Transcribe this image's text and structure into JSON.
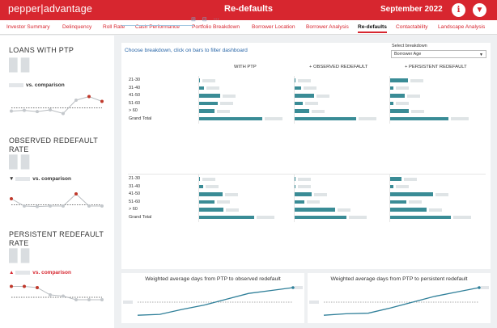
{
  "header": {
    "logo_left": "pepper",
    "logo_sep": "|",
    "logo_right": "advantage",
    "title": "Re-defaults",
    "period": "September 2022",
    "info_label": "i",
    "filter_label": "▼"
  },
  "nav": {
    "tabs": [
      {
        "label": "Investor Summary"
      },
      {
        "label": "Delinquency"
      },
      {
        "label": "Roll Rate"
      },
      {
        "label": "Cash Performance"
      },
      {
        "label": "Portfolio Breakdown"
      },
      {
        "label": "Borrower Location"
      },
      {
        "label": "Borrower Analysis"
      },
      {
        "label": "Re-defaults",
        "active": true
      },
      {
        "label": "Contactability"
      },
      {
        "label": "Landscape Analysis"
      }
    ]
  },
  "left_panel": {
    "loans_ptp": {
      "title": "LOANS WITH PTP",
      "vs_label": "vs. comparison"
    },
    "observed": {
      "title_1": "OBSERVED REDEFAULT",
      "title_2": "RATE",
      "vs_label": "vs. comparison",
      "vs_prefix": "▼"
    },
    "persistent": {
      "title_1": "PERSISTENT REDEFAULT",
      "title_2": "RATE",
      "vs_label": "vs. comparison",
      "vs_prefix": "▲"
    }
  },
  "main": {
    "instruction": "Choose breakdown, click on bars to filter dashboard",
    "select_label": "Select breakdown",
    "select_value": "Borrower Age",
    "columns": [
      "WITH PTP",
      "+ OBSERVED REDEFAULT",
      "+ PERSISTENT REDEFAULT"
    ],
    "rows": [
      "21-30",
      "31-40",
      "41-50",
      "51-60",
      "> 60",
      "Grand Total"
    ],
    "table1": {
      "with_ptp": [
        0.03,
        0.09,
        0.32,
        0.29,
        0.24,
        0.95
      ],
      "observed": [
        0.02,
        0.11,
        0.3,
        0.13,
        0.23,
        0.93
      ],
      "persistent": [
        0.28,
        0.06,
        0.23,
        0.06,
        0.29,
        0.88
      ]
    },
    "table2": {
      "with_ptp": [
        0.01,
        0.07,
        0.36,
        0.24,
        0.37,
        0.83
      ],
      "observed": [
        0.01,
        0.03,
        0.26,
        0.16,
        0.62,
        0.78
      ],
      "persistent": [
        0.18,
        0.06,
        0.65,
        0.25,
        0.55,
        0.92
      ]
    }
  },
  "bottom": {
    "observed_title": "Weighted average days from PTP to observed redefault",
    "persistent_title": "Weighted average days from PTP to persistent redefault"
  },
  "colors": {
    "brand_red": "#d7262f",
    "bar_teal": "#3a8c96",
    "link_blue": "#2a67a8"
  },
  "chart_data": [
    {
      "type": "line",
      "title": "LOANS WITH PTP",
      "series": [
        {
          "values": [
            0.35,
            0.38,
            0.33,
            0.4,
            0.25,
            0.8,
            0.95,
            0.75
          ]
        }
      ],
      "comparison": 0.48
    },
    {
      "type": "line",
      "title": "OBSERVED REDEFAULT RATE",
      "series": [
        {
          "values": [
            0.6,
            0.3,
            0.28,
            0.3,
            0.3,
            0.8,
            0.3,
            0.3
          ]
        }
      ],
      "comparison": 0.35
    },
    {
      "type": "line",
      "title": "PERSISTENT REDEFAULT RATE",
      "series": [
        {
          "values": [
            0.85,
            0.85,
            0.8,
            0.5,
            0.45,
            0.3,
            0.3,
            0.3
          ]
        }
      ],
      "comparison": 0.4
    },
    {
      "type": "line",
      "title": "Weighted average days from PTP to observed redefault",
      "series": [
        {
          "values": [
            0.05,
            0.08,
            0.25,
            0.4,
            0.6,
            0.8,
            0.9,
            1.0
          ]
        }
      ]
    },
    {
      "type": "line",
      "title": "Weighted average days from PTP to persistent redefault",
      "series": [
        {
          "values": [
            0.05,
            0.1,
            0.12,
            0.3,
            0.5,
            0.7,
            0.85,
            1.0
          ]
        }
      ]
    }
  ]
}
